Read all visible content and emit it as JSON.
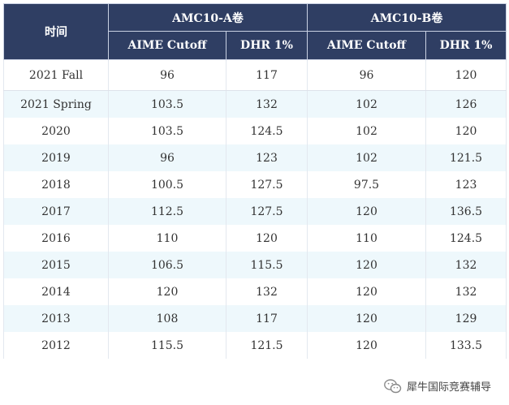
{
  "header": {
    "time_label": "时间",
    "group_a": "AMC10-A卷",
    "group_b": "AMC10-B卷",
    "col_cutoff": "AIME Cutoff",
    "col_dhr": "DHR 1%"
  },
  "rows": [
    {
      "time": "2021 Fall",
      "a_cutoff": "96",
      "a_dhr": "117",
      "b_cutoff": "96",
      "b_dhr": "120"
    },
    {
      "time": "2021 Spring",
      "a_cutoff": "103.5",
      "a_dhr": "132",
      "b_cutoff": "102",
      "b_dhr": "126"
    },
    {
      "time": "2020",
      "a_cutoff": "103.5",
      "a_dhr": "124.5",
      "b_cutoff": "102",
      "b_dhr": "120"
    },
    {
      "time": "2019",
      "a_cutoff": "96",
      "a_dhr": "123",
      "b_cutoff": "102",
      "b_dhr": "121.5"
    },
    {
      "time": "2018",
      "a_cutoff": "100.5",
      "a_dhr": "127.5",
      "b_cutoff": "97.5",
      "b_dhr": "123"
    },
    {
      "time": "2017",
      "a_cutoff": "112.5",
      "a_dhr": "127.5",
      "b_cutoff": "120",
      "b_dhr": "136.5"
    },
    {
      "time": "2016",
      "a_cutoff": "110",
      "a_dhr": "120",
      "b_cutoff": "110",
      "b_dhr": "124.5"
    },
    {
      "time": "2015",
      "a_cutoff": "106.5",
      "a_dhr": "115.5",
      "b_cutoff": "120",
      "b_dhr": "132"
    },
    {
      "time": "2014",
      "a_cutoff": "120",
      "a_dhr": "132",
      "b_cutoff": "120",
      "b_dhr": "132"
    },
    {
      "time": "2013",
      "a_cutoff": "108",
      "a_dhr": "117",
      "b_cutoff": "120",
      "b_dhr": "129"
    },
    {
      "time": "2012",
      "a_cutoff": "115.5",
      "a_dhr": "121.5",
      "b_cutoff": "120",
      "b_dhr": "133.5"
    }
  ],
  "watermark": {
    "text": "犀牛国际竞赛辅导",
    "icon": "wechat-icon"
  },
  "colors": {
    "header_bg": "#2f3e63",
    "header_text": "#ffffff",
    "alt_row_bg": "#eef8fc"
  }
}
